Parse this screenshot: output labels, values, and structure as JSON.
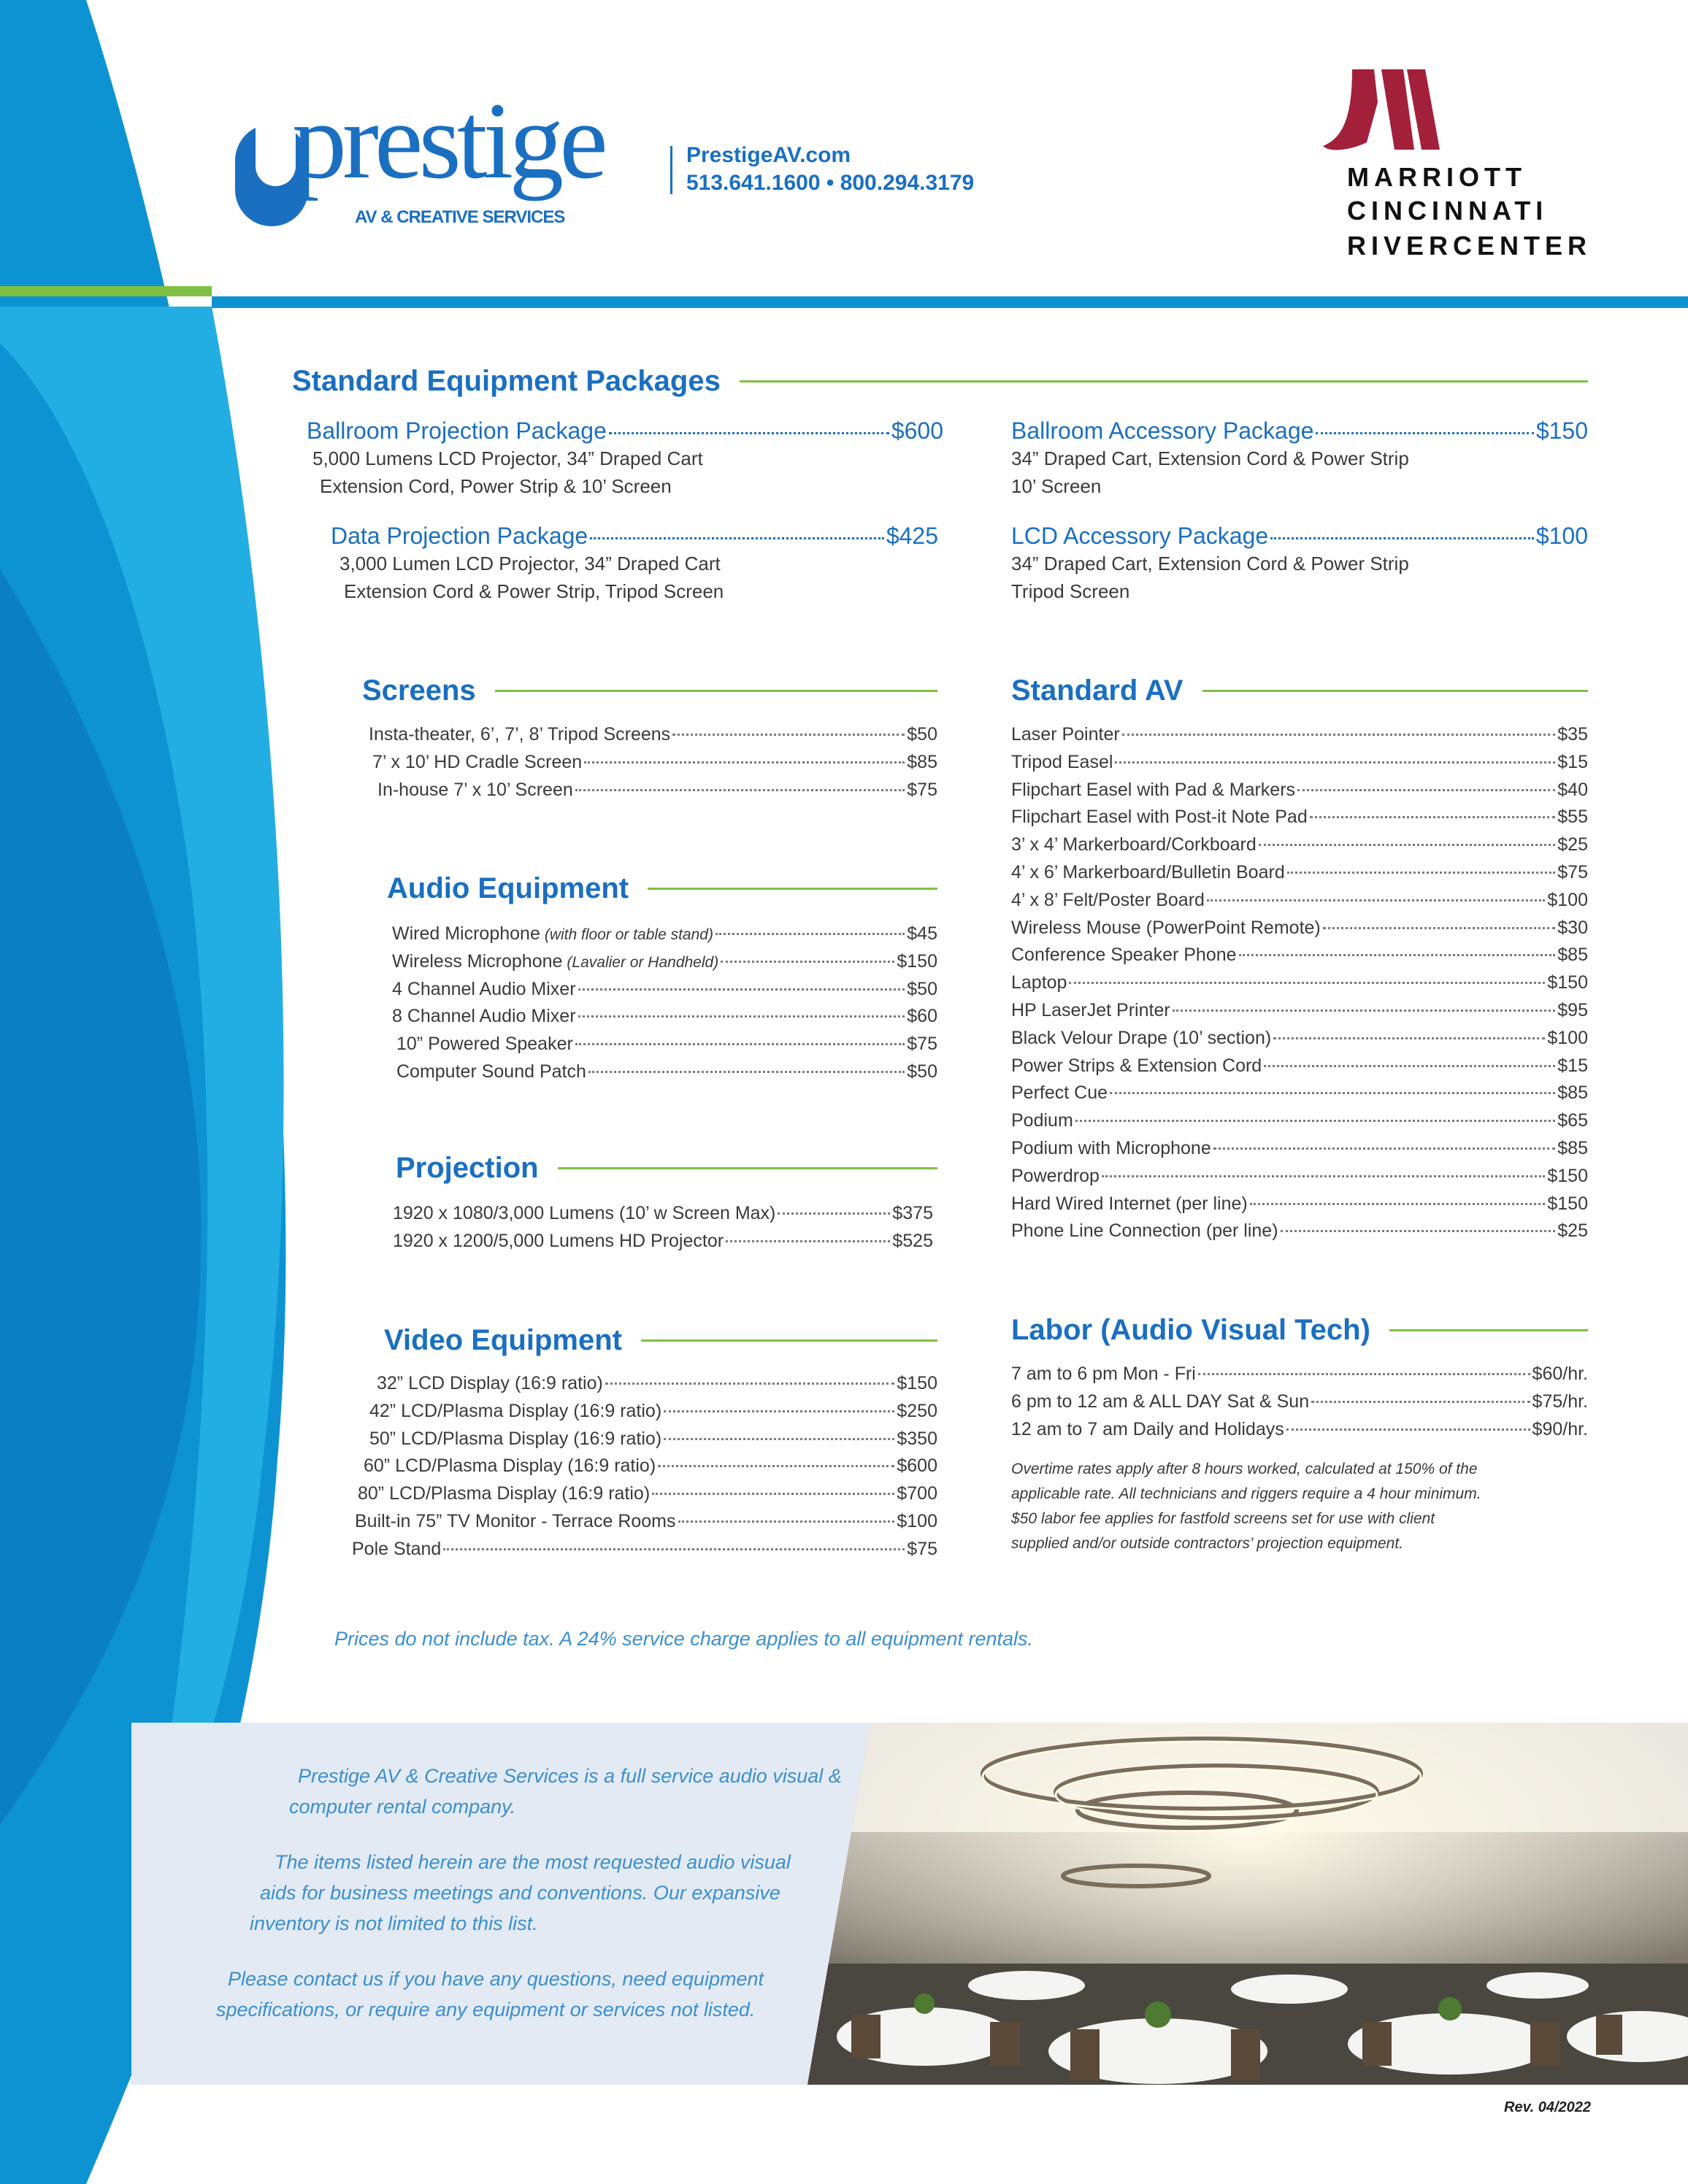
{
  "header": {
    "logo": {
      "word": "prestige",
      "tagline": "AV & CREATIVE SERVICES"
    },
    "website": "PrestigeAV.com",
    "phones": "513.641.1600 • 800.294.3179",
    "hotel": {
      "line1": "MARRIOTT",
      "line2": "CINCINNATI",
      "line3": "RIVERCENTER"
    }
  },
  "colors": {
    "brand_blue": "#1a6fc1",
    "bar_blue": "#0e93d2",
    "accent_green": "#7fc043",
    "marriott_red": "#a3203a"
  },
  "packages": {
    "title": "Standard Equipment Packages",
    "items": [
      {
        "name": "Ballroom Projection Package",
        "price": "$600",
        "desc1": "5,000 Lumens LCD Projector, 34” Draped Cart",
        "desc2": "Extension Cord, Power Strip & 10’ Screen"
      },
      {
        "name": "Data Projection Package",
        "price": "$425",
        "desc1": "3,000 Lumen LCD Projector, 34” Draped Cart",
        "desc2": "Extension Cord & Power Strip, Tripod Screen"
      },
      {
        "name": "Ballroom Accessory Package",
        "price": "$150",
        "desc1": "34” Draped Cart, Extension Cord & Power Strip",
        "desc2": "10’ Screen"
      },
      {
        "name": "LCD Accessory Package",
        "price": "$100",
        "desc1": "34” Draped Cart, Extension Cord & Power Strip",
        "desc2": "Tripod Screen"
      }
    ]
  },
  "screens": {
    "title": "Screens",
    "items": [
      {
        "name": "Insta-theater, 6’, 7’, 8’ Tripod Screens",
        "price": "$50"
      },
      {
        "name": "7’ x 10’ HD Cradle Screen",
        "price": "$85"
      },
      {
        "name": "In-house 7’ x 10’ Screen",
        "price": "$75"
      }
    ]
  },
  "audio": {
    "title": "Audio Equipment",
    "items": [
      {
        "name": "Wired Microphone",
        "note": "(with floor or table stand)",
        "price": "$45"
      },
      {
        "name": "Wireless Microphone",
        "note": "(Lavalier or Handheld)",
        "price": "$150"
      },
      {
        "name": "4 Channel Audio Mixer",
        "price": "$50"
      },
      {
        "name": "8 Channel Audio Mixer",
        "price": "$60"
      },
      {
        "name": "10” Powered Speaker",
        "price": "$75"
      },
      {
        "name": "Computer Sound Patch",
        "price": "$50"
      }
    ]
  },
  "projection": {
    "title": "Projection",
    "items": [
      {
        "name": "1920 x 1080/3,000 Lumens (10’ w Screen Max)",
        "price": "$375"
      },
      {
        "name": "1920 x 1200/5,000 Lumens HD Projector",
        "price": "$525"
      }
    ]
  },
  "video": {
    "title": "Video Equipment",
    "items": [
      {
        "name": "32” LCD Display (16:9 ratio)",
        "price": "$150"
      },
      {
        "name": "42” LCD/Plasma Display (16:9 ratio)",
        "price": "$250"
      },
      {
        "name": "50” LCD/Plasma Display (16:9 ratio)",
        "price": "$350"
      },
      {
        "name": "60” LCD/Plasma Display (16:9 ratio)",
        "price": "$600"
      },
      {
        "name": "80” LCD/Plasma Display (16:9 ratio)",
        "price": "$700"
      },
      {
        "name": "Built-in 75” TV Monitor - Terrace Rooms",
        "price": "$100"
      },
      {
        "name": "Pole Stand",
        "price": "$75"
      }
    ]
  },
  "standard_av": {
    "title": "Standard AV",
    "items": [
      {
        "name": "Laser Pointer",
        "price": "$35"
      },
      {
        "name": "Tripod Easel",
        "price": "$15"
      },
      {
        "name": "Flipchart Easel with Pad & Markers",
        "price": "$40"
      },
      {
        "name": "Flipchart Easel with Post-it Note Pad",
        "price": "$55"
      },
      {
        "name": "3’ x 4’ Markerboard/Corkboard",
        "price": "$25"
      },
      {
        "name": "4’ x 6’ Markerboard/Bulletin Board",
        "price": "$75"
      },
      {
        "name": "4’ x 8’ Felt/Poster Board",
        "price": "$100"
      },
      {
        "name": "Wireless Mouse (PowerPoint Remote)",
        "price": "$30"
      },
      {
        "name": "Conference Speaker Phone",
        "price": "$85"
      },
      {
        "name": "Laptop",
        "price": "$150"
      },
      {
        "name": "HP LaserJet Printer",
        "price": "$95"
      },
      {
        "name": "Black Velour Drape (10’ section)",
        "price": "$100"
      },
      {
        "name": "Power Strips & Extension Cord",
        "price": "$15"
      },
      {
        "name": "Perfect Cue",
        "price": "$85"
      },
      {
        "name": "Podium",
        "price": "$65"
      },
      {
        "name": "Podium with Microphone",
        "price": "$85"
      },
      {
        "name": "Powerdrop",
        "price": "$150"
      },
      {
        "name": "Hard Wired Internet (per line)",
        "price": "$150"
      },
      {
        "name": "Phone Line Connection (per line)",
        "price": "$25"
      }
    ]
  },
  "labor": {
    "title": "Labor (Audio Visual Tech)",
    "items": [
      {
        "name": "7 am to 6 pm Mon - Fri",
        "price": "$60/hr."
      },
      {
        "name": "6 pm to 12 am & ALL DAY Sat & Sun",
        "price": "$75/hr."
      },
      {
        "name": "12 am to 7 am Daily and Holidays",
        "price": "$90/hr."
      }
    ],
    "note_lines": [
      "Overtime rates apply after 8 hours worked, calculated at 150% of the",
      "applicable rate.  All technicians and riggers require a 4 hour minimum.",
      "$50 labor fee applies for fastfold screens set for use with client",
      "supplied and/or outside contractors’ projection equipment."
    ]
  },
  "tax_note": "Prices do not include tax.  A 24% service charge applies to all equipment rentals.",
  "about": {
    "lines": [
      "Prestige AV & Creative Services is a full service audio visual &",
      "computer rental company.",
      "The items listed herein are the most requested audio visual",
      "aids for business meetings and conventions.  Our expansive",
      "inventory is not limited to this list.",
      "Please contact us if you have any questions, need equipment",
      "specifications, or require any equipment or services not listed."
    ]
  },
  "revision": "Rev. 04/2022"
}
